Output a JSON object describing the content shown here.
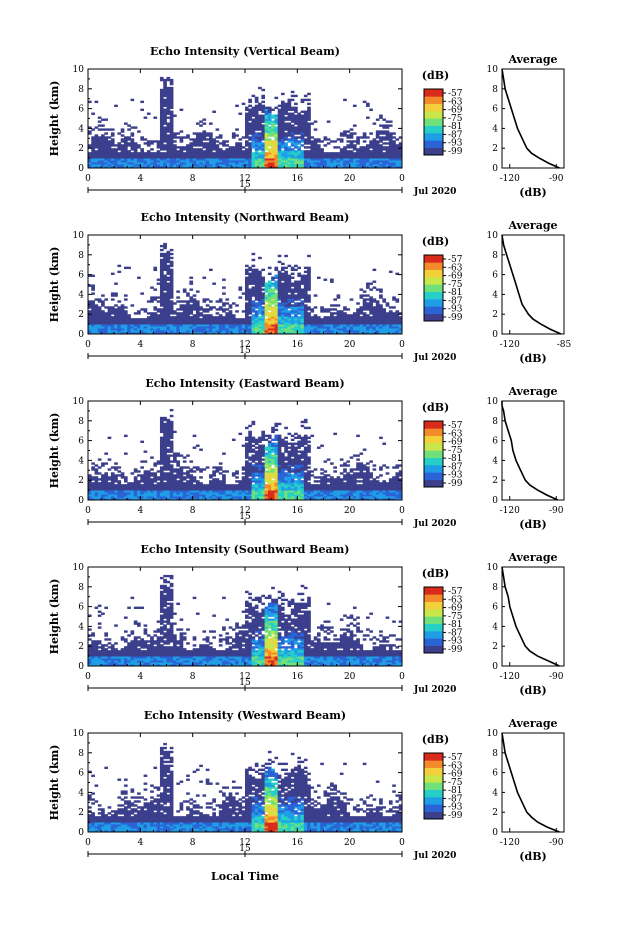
{
  "figure": {
    "xlabel": "Local Time",
    "date_label": "Jul 2020",
    "day_marker_label": "15",
    "colorbar_unit": "(dB)",
    "average_title": "Average",
    "average_xlabel": "(dB)",
    "ylabel": "Height (km)"
  },
  "colors": {
    "background_echo": "#3b3f8c",
    "colormap": [
      "#3b3f8c",
      "#2a63d6",
      "#1f9ee6",
      "#26d0c8",
      "#6fe07a",
      "#c9e64a",
      "#f2d03a",
      "#f58a2a",
      "#d92a1c"
    ]
  },
  "chart_data": [
    {
      "type": "heatmap",
      "title": "Echo Intensity (Vertical Beam)",
      "ylabel": "Height (km)",
      "xlabel": "",
      "xlim": [
        0,
        24
      ],
      "ylim": [
        0,
        10
      ],
      "x_ticks": [
        "0",
        "4",
        "8",
        "12",
        "16",
        "20",
        "0"
      ],
      "y_ticks": [
        "0",
        "2",
        "4",
        "6",
        "8",
        "10"
      ],
      "colorbar": {
        "label": "(dB)",
        "ticks": [
          "-57",
          "-63",
          "-69",
          "-75",
          "-81",
          "-87",
          "-93",
          "-99"
        ]
      },
      "profile": {
        "title": "Average",
        "xlabel": "(dB)",
        "x_ticks": [
          "-120",
          "-90"
        ],
        "xlim": [
          -125,
          -85
        ],
        "y": [
          0,
          0.5,
          1,
          1.5,
          2,
          3,
          4,
          5,
          6,
          7,
          8,
          9,
          10
        ],
        "x": [
          -88,
          -95,
          -101,
          -106,
          -109,
          -112,
          -115,
          -117,
          -119,
          -121,
          -123,
          -124,
          -125
        ]
      }
    },
    {
      "type": "heatmap",
      "title": "Echo Intensity (Northward Beam)",
      "ylabel": "Height (km)",
      "xlabel": "",
      "xlim": [
        0,
        24
      ],
      "ylim": [
        0,
        10
      ],
      "x_ticks": [
        "0",
        "4",
        "8",
        "12",
        "16",
        "20",
        "0"
      ],
      "y_ticks": [
        "0",
        "2",
        "4",
        "6",
        "8",
        "10"
      ],
      "colorbar": {
        "label": "(dB)",
        "ticks": [
          "-57",
          "-63",
          "-69",
          "-75",
          "-81",
          "-87",
          "-93",
          "-99"
        ]
      },
      "profile": {
        "title": "Average",
        "xlabel": "(dB)",
        "x_ticks": [
          "-120",
          "-85"
        ],
        "xlim": [
          -125,
          -85
        ],
        "y": [
          0,
          0.5,
          1,
          1.5,
          2,
          3,
          4,
          5,
          6,
          7,
          8,
          9,
          10
        ],
        "x": [
          -87,
          -94,
          -100,
          -105,
          -108,
          -112,
          -114,
          -116,
          -118,
          -120,
          -122,
          -124,
          -125
        ]
      }
    },
    {
      "type": "heatmap",
      "title": "Echo Intensity (Eastward Beam)",
      "ylabel": "Height (km)",
      "xlabel": "",
      "xlim": [
        0,
        24
      ],
      "ylim": [
        0,
        10
      ],
      "x_ticks": [
        "0",
        "4",
        "8",
        "12",
        "16",
        "20",
        "0"
      ],
      "y_ticks": [
        "0",
        "2",
        "4",
        "6",
        "8",
        "10"
      ],
      "colorbar": {
        "label": "(dB)",
        "ticks": [
          "-57",
          "-63",
          "-69",
          "-75",
          "-81",
          "-87",
          "-93",
          "-99"
        ]
      },
      "profile": {
        "title": "Average",
        "xlabel": "(dB)",
        "x_ticks": [
          "-120",
          "-90"
        ],
        "xlim": [
          -125,
          -85
        ],
        "y": [
          0,
          0.5,
          1,
          1.5,
          2,
          3,
          4,
          5,
          6,
          7,
          8,
          9,
          9.5,
          10
        ],
        "x": [
          -89,
          -96,
          -102,
          -107,
          -110,
          -113,
          -116,
          -118,
          -119,
          -121,
          -123,
          -124,
          -125,
          -125
        ]
      }
    },
    {
      "type": "heatmap",
      "title": "Echo Intensity (Southward Beam)",
      "ylabel": "Height (km)",
      "xlabel": "",
      "xlim": [
        0,
        24
      ],
      "ylim": [
        0,
        10
      ],
      "x_ticks": [
        "0",
        "4",
        "8",
        "12",
        "16",
        "20",
        "0"
      ],
      "y_ticks": [
        "0",
        "2",
        "4",
        "6",
        "8",
        "10"
      ],
      "colorbar": {
        "label": "(dB)",
        "ticks": [
          "-57",
          "-63",
          "-69",
          "-75",
          "-81",
          "-87",
          "-93",
          "-99"
        ]
      },
      "profile": {
        "title": "Average",
        "xlabel": "(dB)",
        "x_ticks": [
          "-120",
          "-90"
        ],
        "xlim": [
          -125,
          -85
        ],
        "y": [
          0,
          0.5,
          1,
          1.5,
          2,
          3,
          4,
          5,
          6,
          7,
          8,
          9,
          10
        ],
        "x": [
          -88,
          -95,
          -102,
          -107,
          -110,
          -113,
          -116,
          -118,
          -120,
          -121,
          -123,
          -124,
          -125
        ]
      }
    },
    {
      "type": "heatmap",
      "title": "Echo Intensity (Westward Beam)",
      "ylabel": "Height (km)",
      "xlabel": "Local Time",
      "xlim": [
        0,
        24
      ],
      "ylim": [
        0,
        10
      ],
      "x_ticks": [
        "0",
        "4",
        "8",
        "12",
        "16",
        "20",
        "0"
      ],
      "y_ticks": [
        "0",
        "2",
        "4",
        "6",
        "8",
        "10"
      ],
      "colorbar": {
        "label": "(dB)",
        "ticks": [
          "-57",
          "-63",
          "-69",
          "-75",
          "-81",
          "-87",
          "-93",
          "-99"
        ]
      },
      "profile": {
        "title": "Average",
        "xlabel": "(dB)",
        "x_ticks": [
          "-120",
          "-90"
        ],
        "xlim": [
          -125,
          -85
        ],
        "y": [
          0,
          0.5,
          1,
          1.5,
          2,
          3,
          4,
          5,
          6,
          7,
          8,
          9,
          10
        ],
        "x": [
          -88,
          -96,
          -102,
          -106,
          -109,
          -112,
          -115,
          -117,
          -119,
          -121,
          -123,
          -124,
          -125
        ]
      }
    }
  ]
}
